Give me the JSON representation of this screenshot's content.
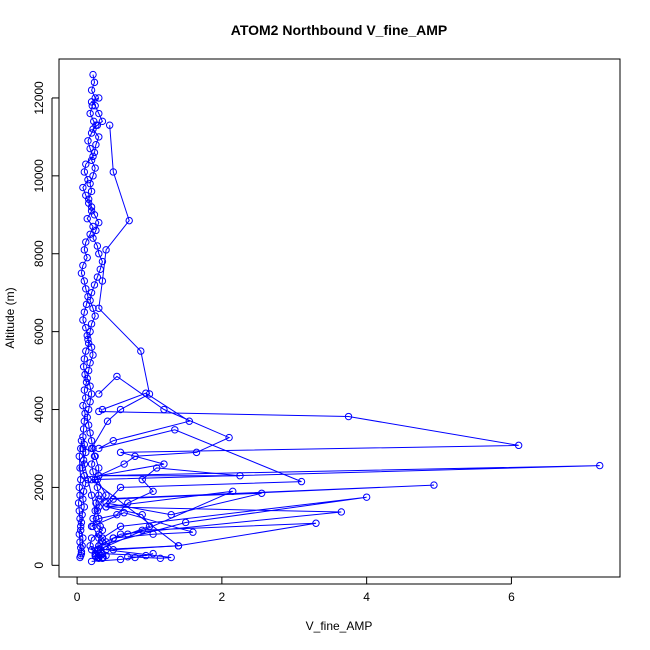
{
  "chart_data": {
    "type": "line",
    "title": "ATOM2 Northbound V_fine_AMP",
    "xlabel": "V_fine_AMP",
    "ylabel": "Altitude (m)",
    "xlim": [
      -0.25,
      7.5
    ],
    "ylim": [
      -300,
      13000
    ],
    "xticks": [
      0,
      2,
      4,
      6
    ],
    "yticks": [
      0,
      2000,
      4000,
      6000,
      8000,
      10000,
      12000
    ],
    "xtick_labels": [
      "0",
      "2",
      "4",
      "6"
    ],
    "ytick_labels": [
      "0",
      "2000",
      "4000",
      "6000",
      "8000",
      "10000",
      "12000"
    ],
    "grid": false,
    "legend": "none",
    "color": "#0000ff",
    "marker": "open-circle",
    "series": [
      {
        "x": [
          0.22,
          0.24,
          0.2,
          0.25,
          0.21,
          0.18,
          0.23,
          0.26,
          0.2,
          0.15,
          0.18,
          0.22,
          0.12,
          0.1,
          0.15,
          0.08,
          0.12,
          0.16,
          0.2,
          0.14,
          0.22,
          0.18,
          0.12,
          0.1,
          0.14,
          0.08,
          0.06,
          0.1,
          0.12,
          0.15,
          0.13,
          0.1,
          0.08,
          0.12,
          0.14,
          0.16,
          0.12,
          0.1,
          0.09,
          0.11,
          0.13,
          0.1,
          0.12,
          0.08,
          0.11,
          0.1,
          0.09,
          0.08,
          0.1,
          0.12,
          0.09,
          0.07,
          0.1,
          0.12,
          0.09,
          0.08,
          0.1,
          0.07,
          0.06,
          0.05,
          0.08,
          0.07,
          0.06,
          0.05,
          0.04,
          0.06,
          0.05,
          0.04,
          0.03,
          0.05,
          0.04,
          0.03,
          0.02,
          0.04,
          0.03,
          0.05,
          0.04,
          0.03,
          0.05,
          0.06,
          0.08,
          0.1,
          0.15,
          0.2,
          0.25,
          0.22,
          0.3,
          0.28,
          0.25,
          0.3,
          0.35
        ],
        "y": [
          12600,
          12400,
          12200,
          12000,
          11800,
          11600,
          11400,
          11300,
          11100,
          10900,
          10700,
          10500,
          10300,
          10100,
          9900,
          9700,
          9500,
          9300,
          9100,
          8900,
          8700,
          8500,
          8300,
          8100,
          7900,
          7700,
          7500,
          7300,
          7100,
          6900,
          6700,
          6500,
          6300,
          6100,
          5900,
          5700,
          5500,
          5300,
          5100,
          4900,
          4700,
          4500,
          4300,
          4100,
          3900,
          3700,
          3500,
          3300,
          3100,
          2900,
          2700,
          2500,
          2300,
          2100,
          1900,
          1700,
          1500,
          1300,
          1100,
          900,
          700,
          500,
          350,
          250,
          200,
          300,
          450,
          600,
          800,
          1000,
          1200,
          1400,
          1600,
          1800,
          2000,
          2200,
          2500,
          2800,
          3000,
          3200,
          3000,
          2600,
          2200,
          1800,
          1400,
          1000,
          700,
          400,
          250,
          200,
          180
        ]
      },
      {
        "x": [
          0.3,
          0.2,
          0.25,
          0.3,
          0.35,
          0.28,
          0.22,
          0.3,
          0.26,
          0.24,
          0.2,
          0.25,
          0.22,
          0.18,
          0.2,
          0.16,
          0.2,
          0.24,
          0.3,
          0.26,
          0.22,
          0.28,
          0.3,
          0.35,
          0.32,
          0.28,
          0.24,
          0.2,
          0.18,
          0.22,
          0.25,
          0.2,
          0.18,
          0.15,
          0.2,
          0.22,
          0.18,
          0.16,
          0.14,
          0.18,
          0.2,
          0.18,
          0.16,
          0.14,
          0.16,
          0.18,
          0.2,
          0.22,
          0.24,
          0.2,
          0.22,
          0.25,
          0.28,
          0.3,
          0.26,
          0.28,
          0.3,
          0.32,
          0.3,
          0.35,
          0.33,
          0.3,
          0.36,
          0.4,
          0.35,
          0.3,
          0.28,
          0.26,
          0.3
        ],
        "y": [
          12000,
          11900,
          11800,
          11600,
          11400,
          11300,
          11200,
          11000,
          10800,
          10600,
          10400,
          10200,
          10000,
          9800,
          9600,
          9400,
          9200,
          9000,
          8800,
          8600,
          8400,
          8200,
          8000,
          7800,
          7600,
          7400,
          7200,
          7000,
          6800,
          6600,
          6400,
          6200,
          6000,
          5800,
          5600,
          5400,
          5200,
          5000,
          4800,
          4600,
          4400,
          4200,
          4000,
          3800,
          3600,
          3400,
          3200,
          3000,
          2800,
          2600,
          2400,
          2200,
          2000,
          1800,
          1600,
          1400,
          1200,
          1000,
          800,
          600,
          400,
          300,
          200,
          250,
          200,
          180,
          200,
          230,
          210
        ]
      },
      {
        "x": [
          0.45,
          0.5,
          0.72,
          0.4,
          0.35,
          0.3,
          0.88,
          1.0,
          0.6,
          0.42,
          0.2,
          0.25,
          0.3,
          0.28,
          0.4,
          0.3,
          0.22,
          0.35,
          0.2,
          0.18,
          0.25,
          0.3
        ],
        "y": [
          11300,
          10100,
          8850,
          8100,
          7300,
          6600,
          5500,
          4400,
          4000,
          3700,
          3000,
          2800,
          2500,
          2200,
          1800,
          1500,
          1200,
          900,
          700,
          500,
          300,
          200
        ]
      },
      {
        "x": [
          0.3,
          3.75,
          6.1,
          0.6,
          1.2,
          0.3,
          7.22,
          0.2,
          1.4,
          0.3,
          2.15,
          0.4,
          0.9,
          1.0,
          0.7
        ],
        "y": [
          3950,
          3820,
          3080,
          2900,
          2600,
          2300,
          2560,
          2200,
          500,
          400,
          1900,
          1500,
          1300,
          1000,
          800
        ]
      },
      {
        "x": [
          0.35,
          0.95,
          1.55,
          0.5,
          0.3,
          1.35,
          3.1,
          0.6,
          0.4,
          1.3,
          2.55,
          0.3,
          4.93,
          0.5,
          0.4,
          3.65,
          0.6,
          0.3,
          1.5,
          4.0,
          0.6,
          0.35,
          0.5,
          1.4,
          3.3,
          0.9,
          0.5,
          0.4,
          1.3,
          1.15,
          0.7
        ],
        "y": [
          4000,
          4420,
          3700,
          3200,
          3000,
          3480,
          2150,
          2000,
          1600,
          1300,
          1850,
          1700,
          2060,
          1700,
          1500,
          1370,
          800,
          500,
          1100,
          1750,
          1000,
          700,
          400,
          500,
          1080,
          900,
          700,
          400,
          200,
          180,
          220
        ]
      },
      {
        "x": [
          0.3,
          0.55,
          1.2,
          2.1,
          1.65,
          0.8,
          0.65,
          0.3,
          2.25,
          1.1,
          0.9,
          1.05,
          0.7,
          0.55,
          0.3,
          0.2,
          0.65,
          1.6,
          1.05,
          0.5,
          0.4,
          0.3,
          0.2,
          0.35,
          0.95,
          1.05,
          0.8,
          0.6,
          0.2
        ],
        "y": [
          4400,
          4850,
          4000,
          3280,
          2900,
          2800,
          2600,
          2300,
          2300,
          2500,
          2200,
          1900,
          1600,
          1300,
          1200,
          1000,
          1350,
          850,
          800,
          700,
          600,
          500,
          400,
          300,
          250,
          300,
          200,
          150,
          100
        ]
      }
    ]
  }
}
